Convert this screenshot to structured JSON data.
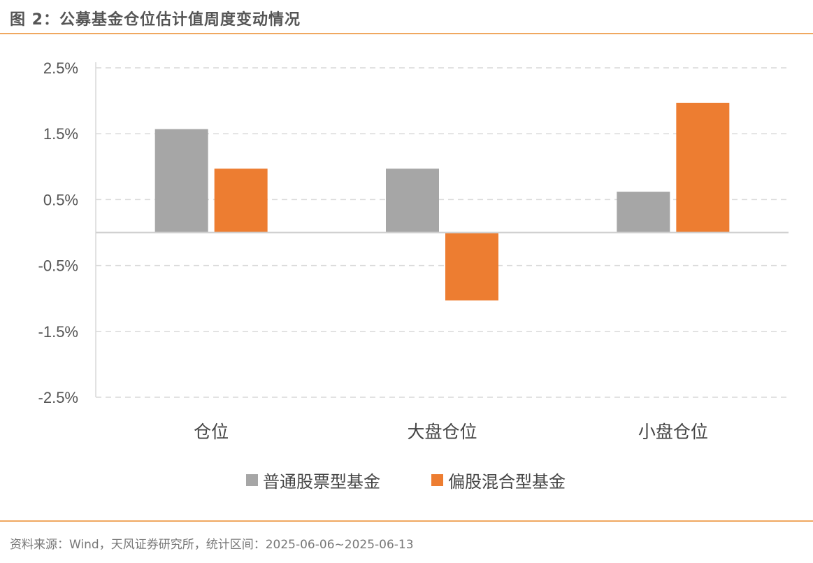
{
  "title": "图 2：公募基金仓位估计值周度变动情况",
  "source": "资料来源：Wind，天风证券研究所，统计区间：2025-06-06~2025-06-13",
  "chart_data": {
    "type": "bar",
    "title": "图 2：公募基金仓位估计值周度变动情况",
    "xlabel": "",
    "ylabel": "",
    "ylim": [
      -2.5,
      2.5
    ],
    "yticks": [
      2.5,
      1.5,
      0.5,
      -0.5,
      -1.5,
      -2.5
    ],
    "ytick_labels": [
      "2.5%",
      "1.5%",
      "0.5%",
      "-0.5%",
      "-1.5%",
      "-2.5%"
    ],
    "grid": true,
    "legend_position": "bottom",
    "categories": [
      "仓位",
      "大盘仓位",
      "小盘仓位"
    ],
    "series": [
      {
        "name": "普通股票型基金",
        "color": "#a6a6a6",
        "values": [
          1.57,
          0.97,
          0.62
        ]
      },
      {
        "name": "偏股混合型基金",
        "color": "#ed7d31",
        "values": [
          0.97,
          -1.03,
          1.97
        ]
      }
    ]
  }
}
